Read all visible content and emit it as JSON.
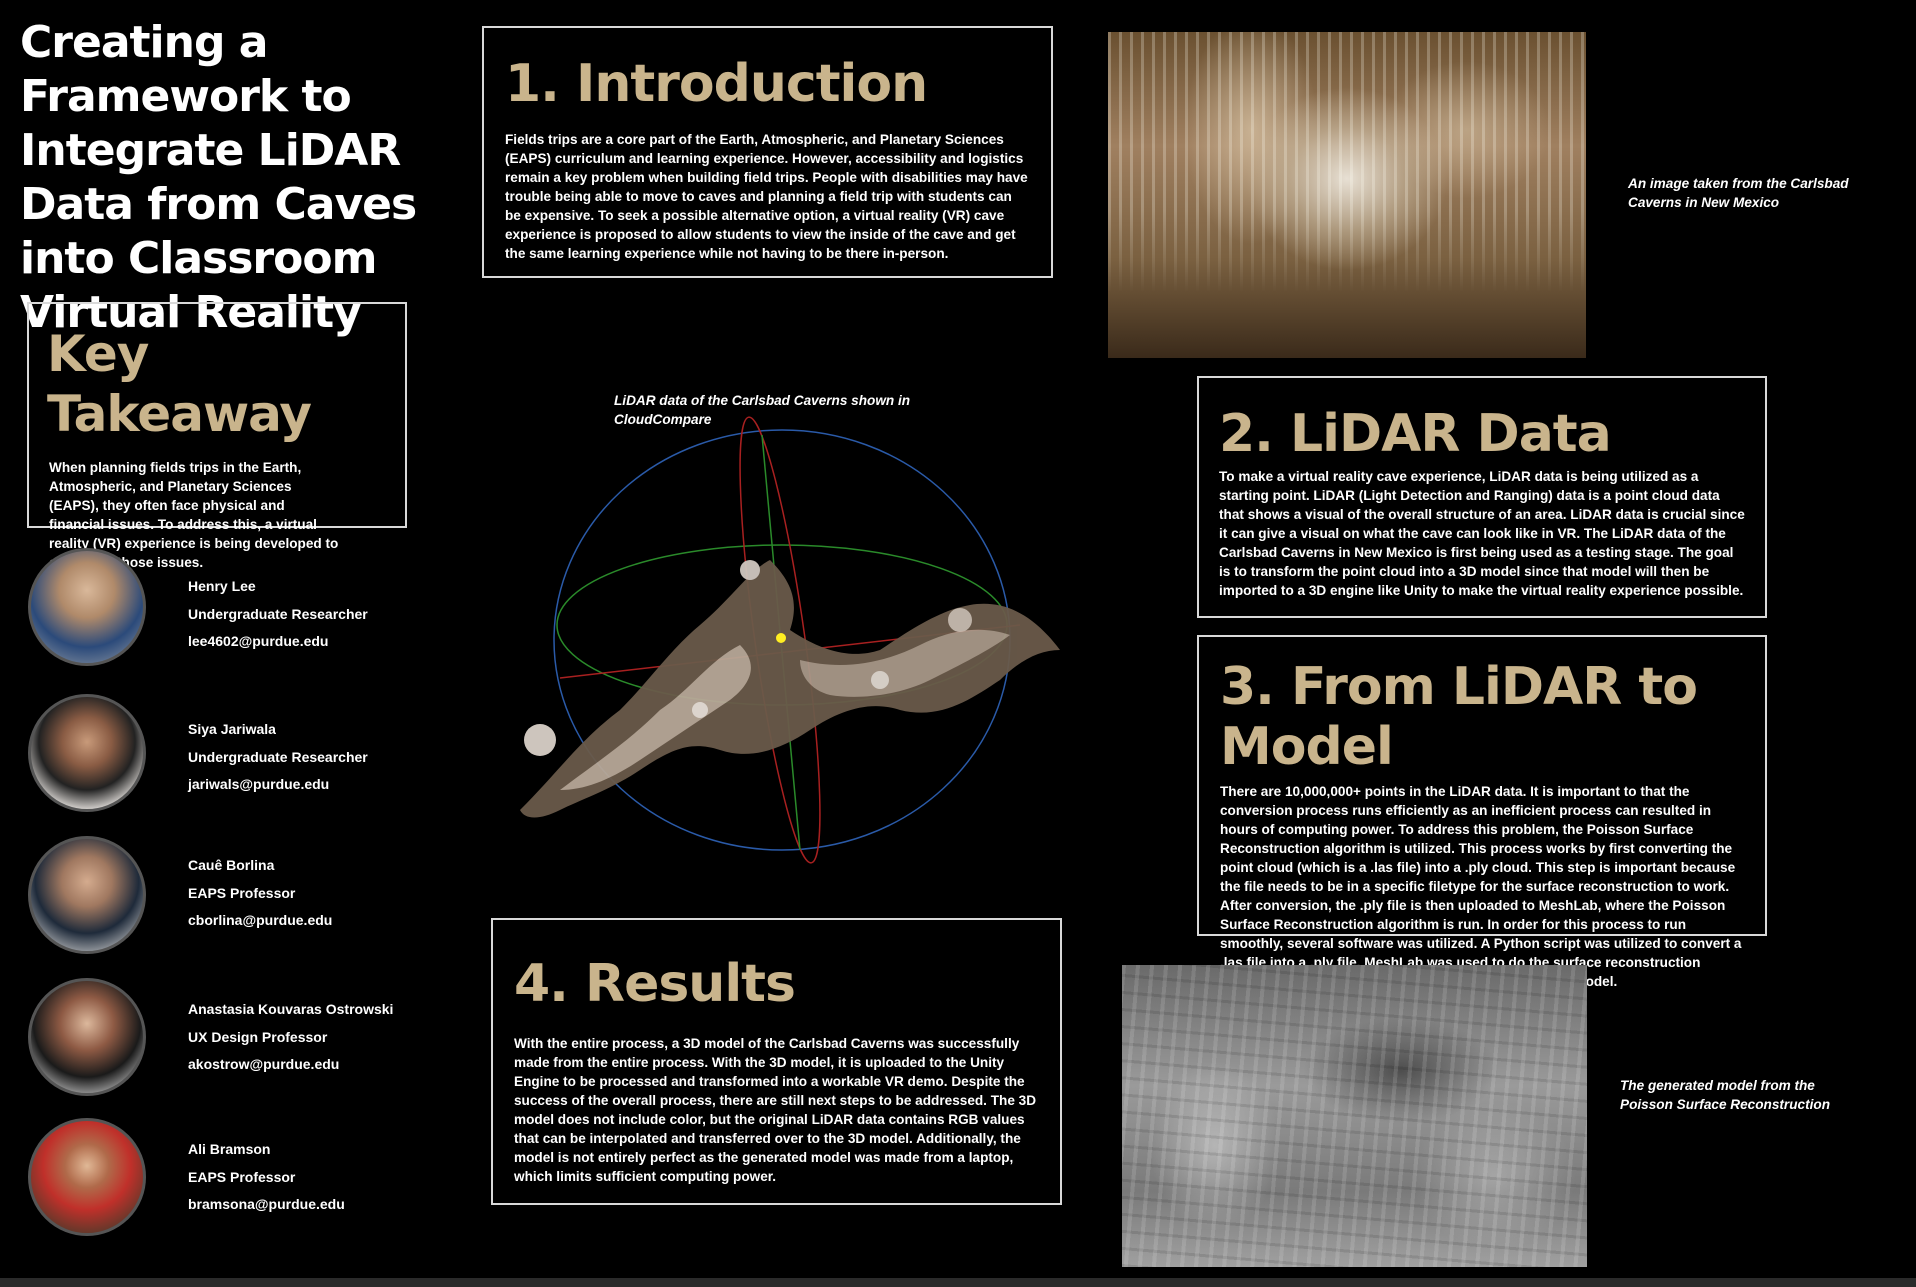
{
  "title": "Creating a Framework to Integrate LiDAR Data from Caves into Classroom Virtual Reality",
  "key_takeaway": {
    "heading": "Key Takeaway",
    "body": "When planning fields trips in the Earth, Atmospheric, and Planetary Sciences (EAPS), they often face physical and financial issues.  To address this, a virtual reality (VR) experience is being developed to overcome those issues."
  },
  "people": [
    {
      "name": "Henry Lee",
      "role": "Undergraduate Researcher",
      "email": "lee4602@purdue.edu"
    },
    {
      "name": "Siya Jariwala",
      "role": "Undergraduate Researcher",
      "email": "jariwals@purdue.edu"
    },
    {
      "name": "Cauê Borlina",
      "role": "EAPS Professor",
      "email": "cborlina@purdue.edu"
    },
    {
      "name": "Anastasia Kouvaras Ostrowski",
      "role": "UX Design Professor",
      "email": "akostrow@purdue.edu"
    },
    {
      "name": "Ali Bramson",
      "role": "EAPS Professor",
      "email": "bramsona@purdue.edu"
    }
  ],
  "introduction": {
    "heading": "1. Introduction",
    "body": "Fields trips are a core part of the Earth, Atmospheric, and Planetary Sciences (EAPS) curriculum and learning experience.  However, accessibility and logistics remain a key problem when building field trips.  People with disabilities may have trouble being able to move to caves and planning a field trip with students can be expensive.  To seek a possible alternative option, a virtual reality (VR) cave experience is proposed to allow students to view the inside of the cave and get the same learning experience while not having to be there in-person."
  },
  "lidar_caption": "LiDAR data of the Carlsbad Caverns shown in CloudCompare",
  "cave_photo_caption": "An image taken from the Carlsbad Caverns in New Mexico",
  "lidar_data": {
    "heading": "2. LiDAR Data",
    "body": "To make a virtual reality cave experience, LiDAR data is being utilized as a starting point.  LiDAR (Light Detection and Ranging) data is a point cloud data that shows a visual of the overall structure of an area.  LiDAR data is crucial since it can give a visual on what the cave can look like in VR. The LiDAR data of the Carlsbad Caverns in New Mexico is first being used as a testing stage.  The goal is to transform the point cloud into a 3D model since that model will then be imported to a 3D engine like Unity to make the virtual reality experience possible."
  },
  "lidar_to_model": {
    "heading": "3. From LiDAR to Model",
    "body": "There are 10,000,000+ points in the LiDAR data.  It is important to that the conversion process runs efficiently as an inefficient process can resulted in hours of computing power.  To address this problem, the Poisson Surface Reconstruction algorithm is utilized.  This process works by first converting the point cloud (which is a .las file) into a .ply cloud.  This step is important because the file needs to be in a specific filetype for the surface reconstruction to work.  After conversion, the .ply file is then uploaded to MeshLab, where the Poisson Surface Reconstruction algorithm is run.  In order for this process to run smoothly, several software was utilized.  A Python script was utilized to convert a .las file into a .ply file.  MeshLab was used to do the surface reconstruction algorithm.  The Unity Engine is used to develop the VR model."
  },
  "results": {
    "heading": "4. Results",
    "body": "With the entire process, a 3D model of the Carlsbad Caverns was successfully made from the entire process.  With the 3D model, it is uploaded to the Unity Engine to be processed and transformed into a workable VR demo.  Despite the success of the overall process, there are still next steps to be addressed.  The 3D model does not include color, but the original LiDAR data contains RGB values that can be interpolated and transferred over to the 3D model.  Additionally, the model is not entirely perfect as the generated model was made from a laptop, which limits sufficient computing power."
  },
  "model_caption": "The generated model from the Poisson Surface Reconstruction",
  "colors": {
    "background": "#000000",
    "heading": "#c9b48c",
    "border": "#d9d9d9"
  }
}
